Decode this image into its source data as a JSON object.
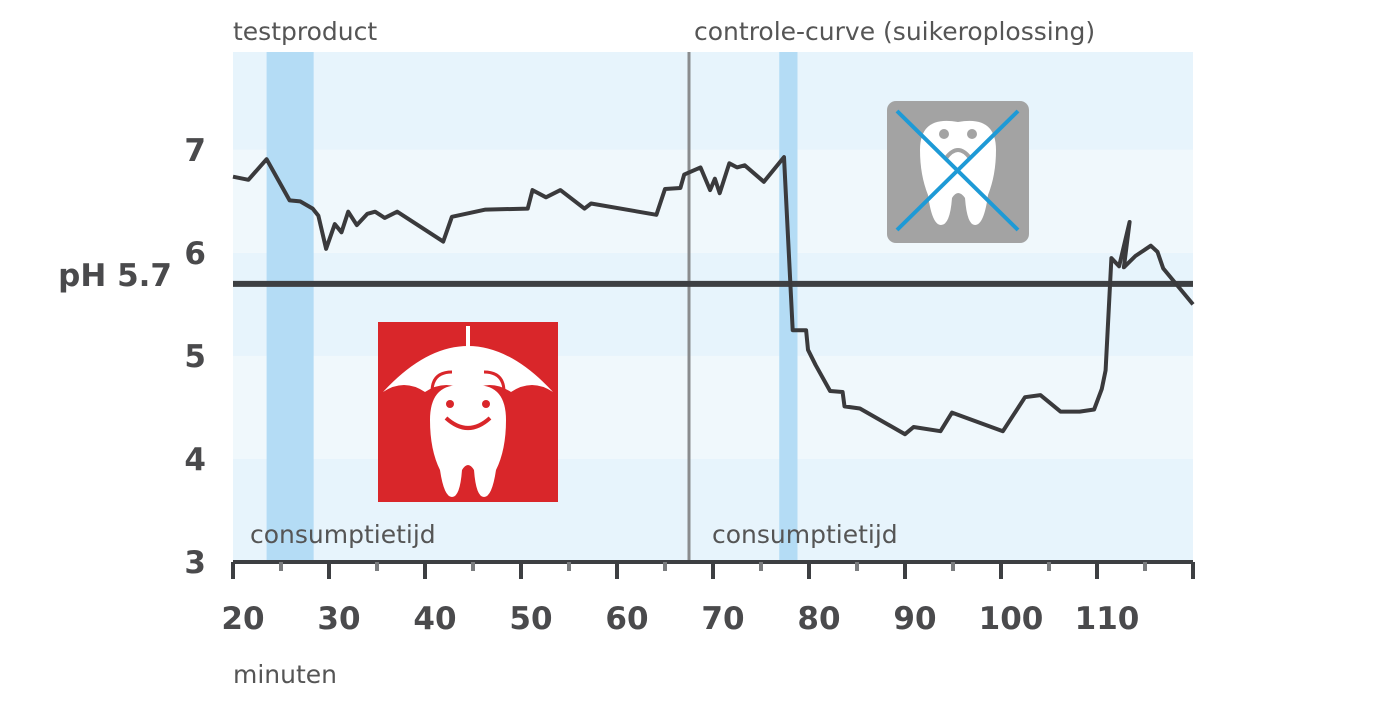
{
  "chart_data": {
    "type": "line",
    "sections": [
      "testproduct",
      "controle-curve (suikeroplossing)"
    ],
    "divider": 67.5,
    "xlabel": "minuten",
    "spans": [
      {
        "start": 23.5,
        "end": 28.4,
        "label": "consumptietijd"
      },
      {
        "start": 76.9,
        "end": 78.8,
        "label": "consumptietijd"
      }
    ],
    "threshold": {
      "value": 5.7,
      "label": "pH 5.7"
    },
    "xlim": [
      20,
      120
    ],
    "xticks": [
      20,
      30,
      40,
      50,
      60,
      70,
      80,
      90,
      100,
      110
    ],
    "ylim": [
      3,
      7.95
    ],
    "yticks": [
      3,
      4,
      5,
      6,
      7
    ],
    "color": "#3a3a3c",
    "x": [
      20,
      21.6,
      23.5,
      25.9,
      27,
      28.3,
      28.9,
      29.7,
      30.6,
      31.3,
      32,
      32.9,
      34,
      34.8,
      35.8,
      37.1,
      41.9,
      42.8,
      46.3,
      50.7,
      51.2,
      52.6,
      54.1,
      56.6,
      57.3,
      64.1,
      65,
      66.6,
      67,
      68.7,
      69.7,
      70.2,
      70.7,
      71.7,
      72.5,
      73.3,
      75.3,
      77.4,
      78.3,
      79.7,
      79.9,
      80.7,
      82.2,
      83.5,
      83.7,
      85.3,
      90,
      90.9,
      93.7,
      94.9,
      100.2,
      102.5,
      104.1,
      106.2,
      108.2,
      109.7,
      110.5,
      110.9,
      111.5,
      112.3,
      113.4,
      112.8,
      114,
      115.6,
      116.3,
      116.9,
      120
    ],
    "values": [
      6.74,
      6.71,
      6.91,
      6.51,
      6.5,
      6.43,
      6.36,
      6.04,
      6.28,
      6.2,
      6.4,
      6.27,
      6.38,
      6.4,
      6.34,
      6.4,
      6.11,
      6.35,
      6.42,
      6.43,
      6.61,
      6.54,
      6.61,
      6.43,
      6.48,
      6.37,
      6.62,
      6.63,
      6.76,
      6.83,
      6.61,
      6.72,
      6.58,
      6.87,
      6.83,
      6.85,
      6.69,
      6.93,
      5.25,
      5.25,
      5.06,
      4.91,
      4.66,
      4.65,
      4.51,
      4.49,
      4.24,
      4.31,
      4.27,
      4.45,
      4.27,
      4.6,
      4.62,
      4.46,
      4.46,
      4.48,
      4.68,
      4.86,
      5.95,
      5.87,
      6.3,
      5.86,
      5.97,
      6.07,
      6.01,
      5.85,
      5.5
    ]
  }
}
